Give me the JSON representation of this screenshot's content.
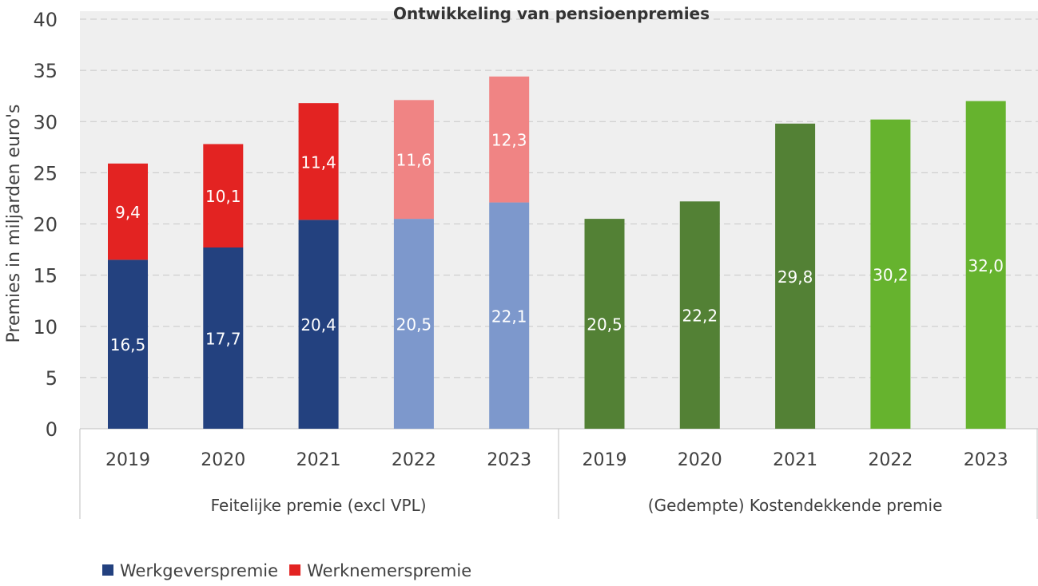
{
  "chart_data": {
    "type": "bar",
    "title": "Ontwikkeling van pensioenpremies",
    "ylabel": "Premies in miljarden euro's",
    "ylim": [
      0,
      40
    ],
    "yticks": [
      0,
      5,
      10,
      15,
      20,
      25,
      30,
      35,
      40
    ],
    "grid": true,
    "legend_position": "bottom-left",
    "legend": [
      {
        "name": "Werkgeverspremie",
        "color": "#23417f"
      },
      {
        "name": "Werknemerspremie",
        "color": "#e32322"
      }
    ],
    "groups": [
      {
        "label": "Feitelijke premie (excl VPL)",
        "stacked": true,
        "categories": [
          "2019",
          "2020",
          "2021",
          "2022",
          "2023"
        ],
        "series": [
          {
            "name": "Werkgeverspremie",
            "values": [
              16.5,
              17.7,
              20.4,
              20.5,
              22.1
            ],
            "labels": [
              "16,5",
              "17,7",
              "20,4",
              "20,5",
              "22,1"
            ],
            "colors": [
              "#23417f",
              "#23417f",
              "#23417f",
              "#7d98cc",
              "#7d98cc"
            ]
          },
          {
            "name": "Werknemerspremie",
            "values": [
              9.4,
              10.1,
              11.4,
              11.6,
              12.3
            ],
            "labels": [
              "9,4",
              "10,1",
              "11,4",
              "11,6",
              "12,3"
            ],
            "colors": [
              "#e32322",
              "#e32322",
              "#e32322",
              "#f08484",
              "#f08484"
            ]
          }
        ]
      },
      {
        "label": "(Gedempte) Kostendekkende premie",
        "stacked": false,
        "categories": [
          "2019",
          "2020",
          "2021",
          "2022",
          "2023"
        ],
        "series": [
          {
            "values": [
              20.5,
              22.2,
              29.8,
              30.2,
              32.0
            ],
            "labels": [
              "20,5",
              "22,2",
              "29,8",
              "30,2",
              "32,0"
            ],
            "colors": [
              "#538135",
              "#538135",
              "#538135",
              "#66b32e",
              "#66b32e"
            ]
          }
        ]
      }
    ],
    "background": "#efefef"
  }
}
